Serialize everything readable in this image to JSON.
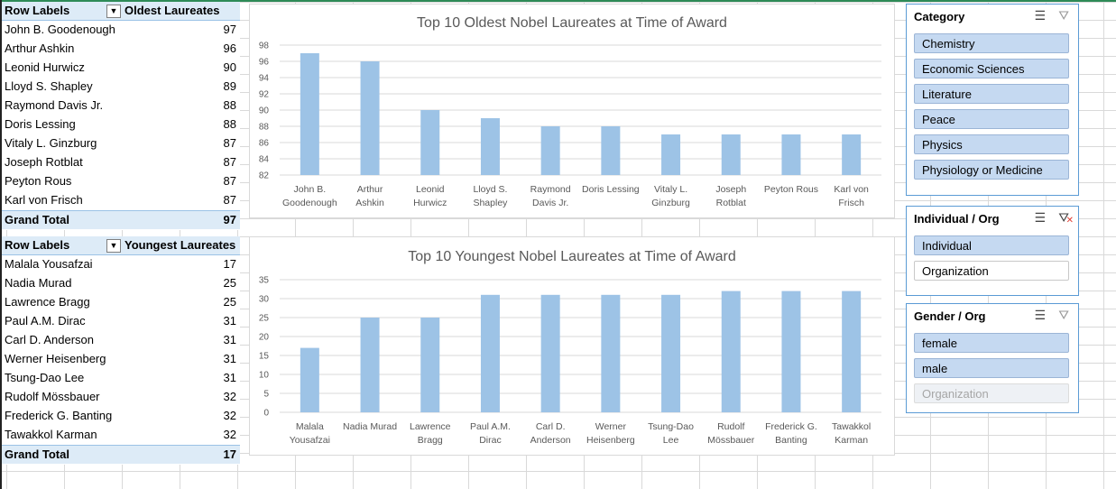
{
  "pivot_oldest": {
    "header_label": "Row Labels",
    "header_value": "Oldest Laureates",
    "rows": [
      {
        "name": "John B. Goodenough",
        "value": "97"
      },
      {
        "name": "Arthur Ashkin",
        "value": "96"
      },
      {
        "name": "Leonid Hurwicz",
        "value": "90"
      },
      {
        "name": "Lloyd S. Shapley",
        "value": "89"
      },
      {
        "name": "Raymond Davis Jr.",
        "value": "88"
      },
      {
        "name": "Doris Lessing",
        "value": "88"
      },
      {
        "name": "Vitaly L. Ginzburg",
        "value": "87"
      },
      {
        "name": "Joseph Rotblat",
        "value": "87"
      },
      {
        "name": "Peyton Rous",
        "value": "87"
      },
      {
        "name": "Karl von Frisch",
        "value": "87"
      }
    ],
    "total_label": "Grand Total",
    "total_value": "97"
  },
  "pivot_youngest": {
    "header_label": "Row Labels",
    "header_value": "Youngest Laureates",
    "rows": [
      {
        "name": "Malala Yousafzai",
        "value": "17"
      },
      {
        "name": "Nadia Murad",
        "value": "25"
      },
      {
        "name": "Lawrence Bragg",
        "value": "25"
      },
      {
        "name": "Paul A.M. Dirac",
        "value": "31"
      },
      {
        "name": "Carl D. Anderson",
        "value": "31"
      },
      {
        "name": "Werner Heisenberg",
        "value": "31"
      },
      {
        "name": "Tsung-Dao Lee",
        "value": "31"
      },
      {
        "name": "Rudolf Mössbauer",
        "value": "32"
      },
      {
        "name": "Frederick G. Banting",
        "value": "32"
      },
      {
        "name": "Tawakkol Karman",
        "value": "32"
      }
    ],
    "total_label": "Grand Total",
    "total_value": "17"
  },
  "chart_data": [
    {
      "type": "bar",
      "title": "Top 10 Oldest Nobel Laureates at Time of Award",
      "categories": [
        [
          "John B.",
          "Goodenough"
        ],
        [
          "Arthur",
          "Ashkin"
        ],
        [
          "Leonid",
          "Hurwicz"
        ],
        [
          "Lloyd S.",
          "Shapley"
        ],
        [
          "Raymond",
          "Davis Jr."
        ],
        [
          "Doris Lessing"
        ],
        [
          "Vitaly L.",
          "Ginzburg"
        ],
        [
          "Joseph",
          "Rotblat"
        ],
        [
          "Peyton Rous"
        ],
        [
          "Karl von",
          "Frisch"
        ]
      ],
      "values": [
        97,
        96,
        90,
        89,
        88,
        88,
        87,
        87,
        87,
        87
      ],
      "ylim": [
        82,
        98
      ],
      "yticks": [
        82,
        84,
        86,
        88,
        90,
        92,
        94,
        96,
        98
      ],
      "color": "#9dc3e6"
    },
    {
      "type": "bar",
      "title": "Top 10 Youngest Nobel Laureates at Time of Award",
      "categories": [
        [
          "Malala",
          "Yousafzai"
        ],
        [
          "Nadia Murad"
        ],
        [
          "Lawrence",
          "Bragg"
        ],
        [
          "Paul A.M.",
          "Dirac"
        ],
        [
          "Carl D.",
          "Anderson"
        ],
        [
          "Werner",
          "Heisenberg"
        ],
        [
          "Tsung-Dao",
          "Lee"
        ],
        [
          "Rudolf",
          "Mössbauer"
        ],
        [
          "Frederick G.",
          "Banting"
        ],
        [
          "Tawakkol",
          "Karman"
        ]
      ],
      "values": [
        17,
        25,
        25,
        31,
        31,
        31,
        31,
        32,
        32,
        32
      ],
      "ylim": [
        0,
        35
      ],
      "yticks": [
        0,
        5,
        10,
        15,
        20,
        25,
        30,
        35
      ],
      "color": "#9dc3e6"
    }
  ],
  "slicers": [
    {
      "title": "Category",
      "filter_active": false,
      "items": [
        {
          "label": "Chemistry",
          "state": "selected"
        },
        {
          "label": "Economic Sciences",
          "state": "selected"
        },
        {
          "label": "Literature",
          "state": "selected"
        },
        {
          "label": "Peace",
          "state": "selected"
        },
        {
          "label": "Physics",
          "state": "selected"
        },
        {
          "label": "Physiology or Medicine",
          "state": "selected"
        }
      ]
    },
    {
      "title": "Individual / Org",
      "filter_active": true,
      "items": [
        {
          "label": "Individual",
          "state": "selected"
        },
        {
          "label": "Organization",
          "state": "unselected"
        }
      ]
    },
    {
      "title": "Gender / Org",
      "filter_active": false,
      "items": [
        {
          "label": "female",
          "state": "selected"
        },
        {
          "label": "male",
          "state": "selected"
        },
        {
          "label": "Organization",
          "state": "nodata"
        }
      ]
    }
  ],
  "icons": {
    "multiselect": "multi-select-icon",
    "clearfilter": "clear-filter-icon",
    "dropdown": "filter-dropdown-icon"
  }
}
